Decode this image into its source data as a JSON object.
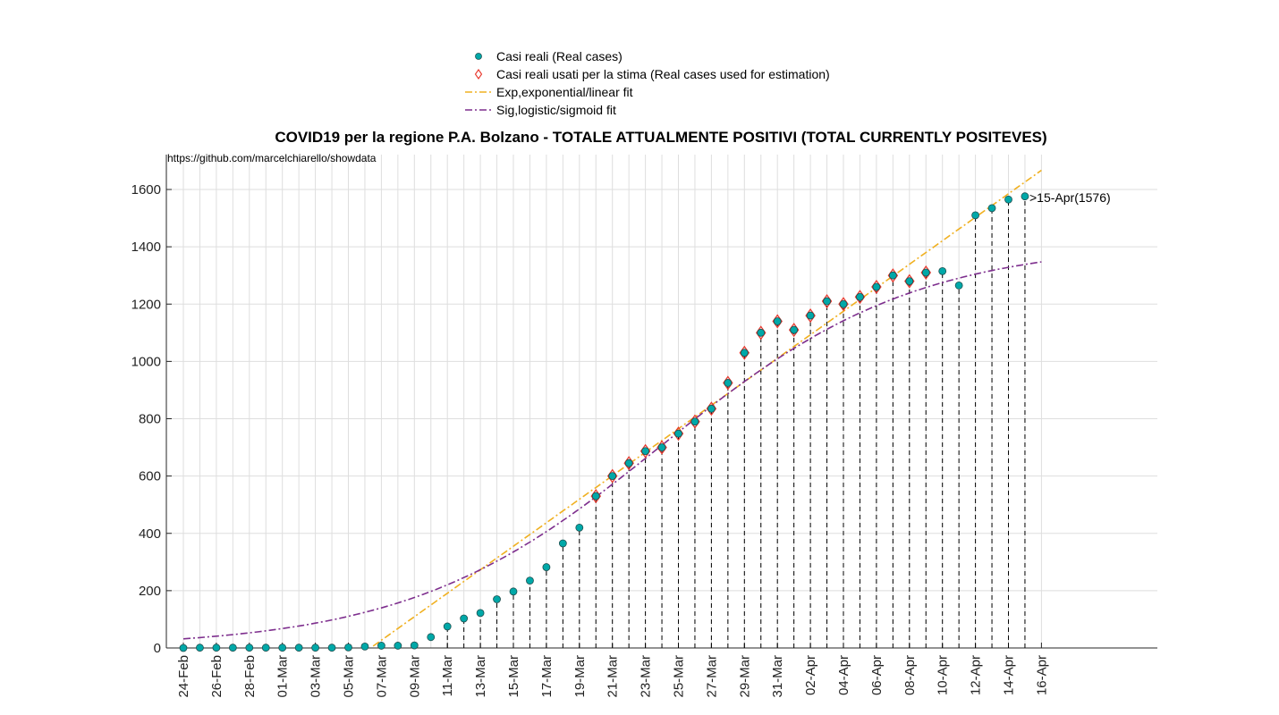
{
  "chart_data": {
    "type": "scatter",
    "title": "COVID19 per la regione P.A. Bolzano - TOTALE ATTUALMENTE POSITIVI (TOTAL CURRENTLY POSITEVES)",
    "source_text": "https://github.com/marcelchiarello/showdata",
    "annotation": ">15-Apr(1576)",
    "xlabel": "",
    "ylabel": "",
    "ylim": [
      0,
      1720
    ],
    "yticks": [
      0,
      200,
      400,
      600,
      800,
      1000,
      1200,
      1400,
      1600
    ],
    "x_tick_labels": [
      "24-Feb",
      "26-Feb",
      "28-Feb",
      "01-Mar",
      "03-Mar",
      "05-Mar",
      "07-Mar",
      "09-Mar",
      "11-Mar",
      "13-Mar",
      "15-Mar",
      "17-Mar",
      "19-Mar",
      "21-Mar",
      "23-Mar",
      "25-Mar",
      "27-Mar",
      "29-Mar",
      "31-Mar",
      "02-Apr",
      "04-Apr",
      "06-Apr",
      "08-Apr",
      "10-Apr",
      "12-Apr",
      "14-Apr",
      "16-Apr"
    ],
    "grid": true,
    "legend_position": "top-center",
    "legend": [
      {
        "label": "Casi reali (Real cases)",
        "kind": "dot"
      },
      {
        "label": "Casi reali usati per la stima (Real cases used for estimation)",
        "kind": "diamond"
      },
      {
        "label": "Exp,exponential/linear fit",
        "kind": "dashdot-orange"
      },
      {
        "label": "Sig,logistic/sigmoid fit",
        "kind": "dashdot-purple"
      }
    ],
    "colors": {
      "real": "#00a8a8",
      "real_edge": "#1f4f4f",
      "estimation": "#e8352a",
      "exp_fit": "#f0b020",
      "sig_fit": "#7e2f8e",
      "stem": "#000000"
    },
    "x_dates": [
      "24-Feb",
      "25-Feb",
      "26-Feb",
      "27-Feb",
      "28-Feb",
      "29-Feb",
      "01-Mar",
      "02-Mar",
      "03-Mar",
      "04-Mar",
      "05-Mar",
      "06-Mar",
      "07-Mar",
      "08-Mar",
      "09-Mar",
      "10-Mar",
      "11-Mar",
      "12-Mar",
      "13-Mar",
      "14-Mar",
      "15-Mar",
      "16-Mar",
      "17-Mar",
      "18-Mar",
      "19-Mar",
      "20-Mar",
      "21-Mar",
      "22-Mar",
      "23-Mar",
      "24-Mar",
      "25-Mar",
      "26-Mar",
      "27-Mar",
      "28-Mar",
      "29-Mar",
      "30-Mar",
      "31-Mar",
      "01-Apr",
      "02-Apr",
      "03-Apr",
      "04-Apr",
      "05-Apr",
      "06-Apr",
      "07-Apr",
      "08-Apr",
      "09-Apr",
      "10-Apr",
      "11-Apr",
      "12-Apr",
      "13-Apr",
      "14-Apr",
      "15-Apr"
    ],
    "series": [
      {
        "name": "Casi reali (Real cases)",
        "values": [
          0,
          1,
          1,
          1,
          1,
          1,
          1,
          1,
          1,
          1,
          2,
          5,
          8,
          8,
          9,
          38,
          75,
          103,
          122,
          170,
          197,
          235,
          282,
          365,
          420,
          530,
          600,
          645,
          687,
          700,
          748,
          790,
          835,
          925,
          1030,
          1100,
          1140,
          1110,
          1160,
          1210,
          1200,
          1225,
          1260,
          1300,
          1280,
          1310,
          1315,
          1265,
          1510,
          1535,
          1565,
          1576
        ]
      },
      {
        "name": "Casi reali usati per la stima (Real cases used for estimation)",
        "values": [
          null,
          null,
          null,
          null,
          null,
          null,
          null,
          null,
          null,
          null,
          null,
          null,
          null,
          null,
          null,
          null,
          null,
          null,
          null,
          null,
          null,
          null,
          null,
          null,
          null,
          530,
          600,
          645,
          687,
          700,
          748,
          790,
          835,
          925,
          1030,
          1100,
          1140,
          1110,
          1160,
          1210,
          1200,
          1225,
          1260,
          1300,
          1280,
          1310,
          null,
          null,
          null,
          null,
          null,
          null
        ]
      },
      {
        "name": "Exp,exponential/linear fit",
        "x_start": "05-Mar",
        "x_end": "16-Apr",
        "slope_per_day": 41.0,
        "intercept_at_05_Mar": -55
      },
      {
        "name": "Sig,logistic/sigmoid fit",
        "x_start": "24-Feb",
        "x_end": "16-Apr",
        "L": 1415,
        "k": 0.13,
        "midpoint_date": "24-Mar"
      }
    ]
  }
}
